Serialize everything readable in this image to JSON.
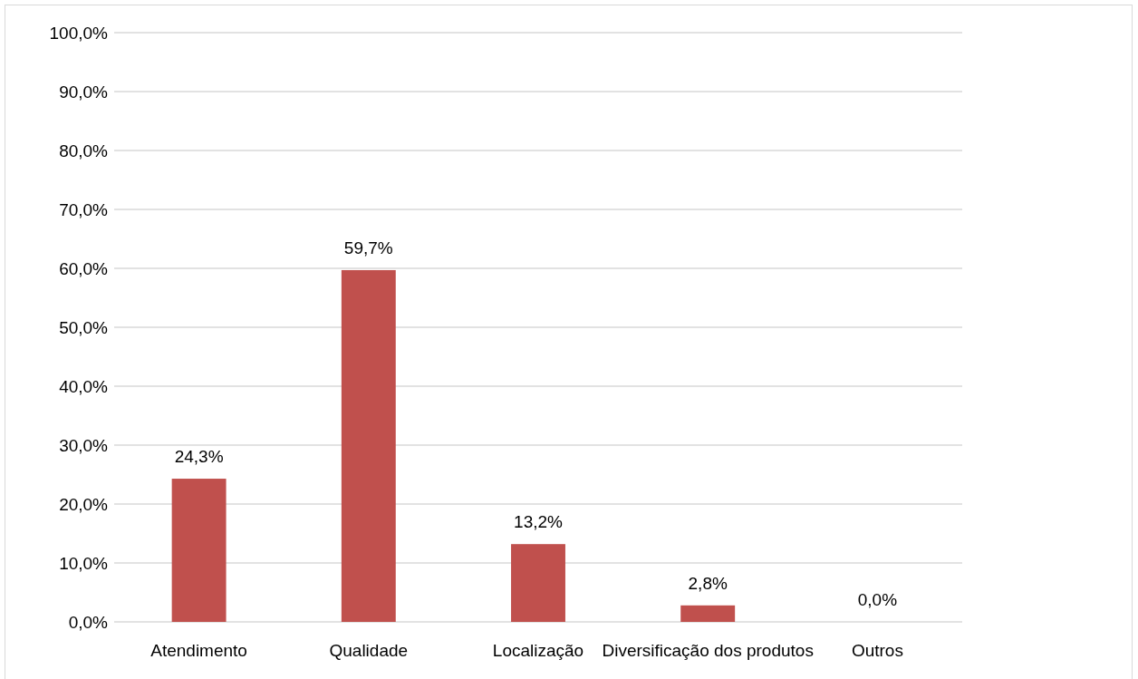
{
  "chart_data": {
    "type": "bar",
    "categories": [
      "Atendimento",
      "Qualidade",
      "Localização",
      "Diversificação dos produtos",
      "Outros"
    ],
    "values": [
      24.3,
      59.7,
      13.2,
      2.8,
      0.0
    ],
    "value_labels": [
      "24,3%",
      "59,7%",
      "13,2%",
      "2,8%",
      "0,0%"
    ],
    "color": "#c0504d",
    "ylim": [
      0,
      100
    ],
    "yticks": [
      {
        "value": 0,
        "label": "0,0%"
      },
      {
        "value": 10,
        "label": "10,0%"
      },
      {
        "value": 20,
        "label": "20,0%"
      },
      {
        "value": 30,
        "label": "30,0%"
      },
      {
        "value": 40,
        "label": "40,0%"
      },
      {
        "value": 50,
        "label": "50,0%"
      },
      {
        "value": 60,
        "label": "60,0%"
      },
      {
        "value": 70,
        "label": "70,0%"
      },
      {
        "value": 80,
        "label": "80,0%"
      },
      {
        "value": 90,
        "label": "90,0%"
      },
      {
        "value": 100,
        "label": "100,0%"
      }
    ],
    "grid": "y"
  }
}
